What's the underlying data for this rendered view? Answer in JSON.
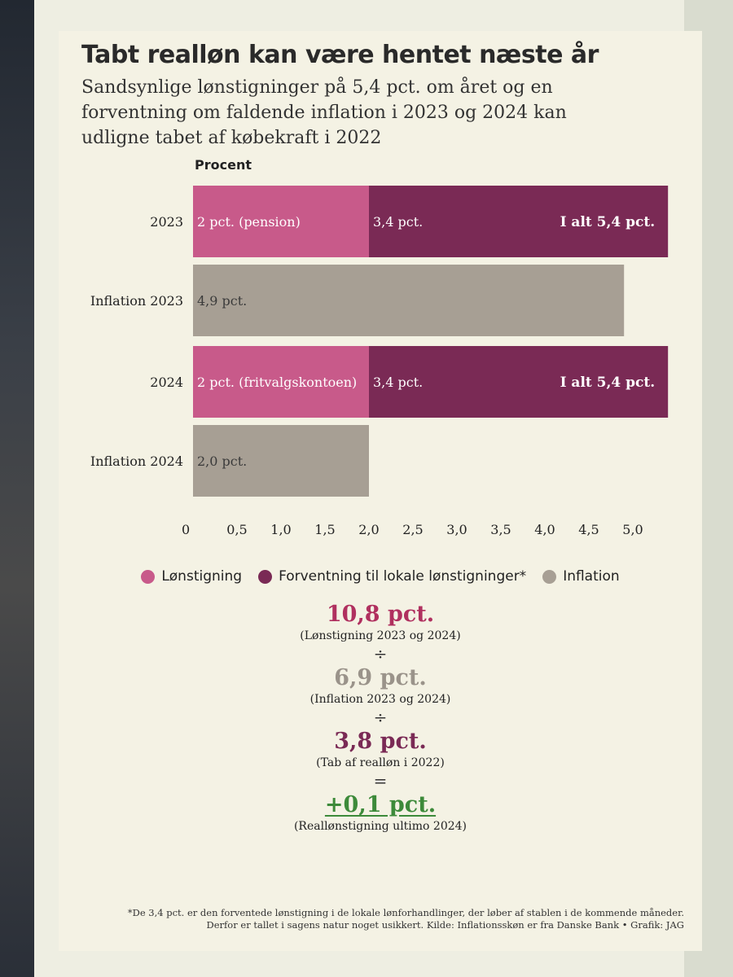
{
  "title": "Tabt realløn kan være hentet næste år",
  "subtitle": "Sandsynlige lønstigninger på 5,4 pct. om året og en forventning om faldende inflation i 2023 og 2024 kan udligne tabet af købekraft i 2022",
  "colors": {
    "lonstigning": "#c85a8a",
    "lokale": "#7a2a55",
    "inflation": "#a79f94",
    "calc_red": "#b0305f",
    "calc_gray": "#9a938a",
    "calc_dark": "#7a2a55",
    "calc_green": "#3d8a3a"
  },
  "chart_data": {
    "type": "bar",
    "orientation": "horizontal",
    "stacked": true,
    "title": "",
    "xlabel": "",
    "ylabel": "Procent",
    "xlim": [
      0,
      5.4
    ],
    "ticks": [
      "0",
      "0,5",
      "1,0",
      "1,5",
      "2,0",
      "2,5",
      "3,0",
      "3,5",
      "4,0",
      "4,5",
      "5,0"
    ],
    "categories": [
      "2023",
      "Inflation 2023",
      "2024",
      "Inflation 2024"
    ],
    "series": [
      {
        "name": "Lønstigning",
        "values": [
          2.0,
          0,
          2.0,
          0
        ],
        "labels": [
          "2 pct. (pension)",
          "",
          "2 pct. (fritvalgskontoen)",
          ""
        ]
      },
      {
        "name": "Forventning til lokale lønstigninger*",
        "values": [
          3.4,
          0,
          3.4,
          0
        ],
        "labels": [
          "3,4 pct.",
          "",
          "3,4 pct.",
          ""
        ]
      },
      {
        "name": "Inflation",
        "values": [
          0,
          4.9,
          0,
          2.0
        ],
        "labels": [
          "",
          "4,9 pct.",
          "",
          "2,0 pct."
        ]
      }
    ],
    "totals": [
      "I alt 5,4 pct.",
      "",
      "I alt 5,4 pct.",
      ""
    ],
    "legend_position": "bottom",
    "grid": false
  },
  "calculation": {
    "line1": {
      "value": "10,8 pct.",
      "caption": "(Lønstigning 2023 og 2024)"
    },
    "op1": "÷",
    "line2": {
      "value": "6,9 pct.",
      "caption": "(Inflation 2023 og 2024)"
    },
    "op2": "÷",
    "line3": {
      "value": "3,8 pct.",
      "caption": "(Tab af realløn i 2022)"
    },
    "op3": "=",
    "line4": {
      "value": "+0,1 pct.",
      "caption": "(Reallønstigning ultimo 2024)"
    }
  },
  "footnote": {
    "line1": "*De 3,4 pct. er den forventede lønstigning i de lokale lønforhandlinger, der løber af stablen i de kommende måneder.",
    "line2": "Derfor er tallet i sagens natur noget usikkert. Kilde: Inflationsskøn er fra Danske Bank • Grafik: JAG"
  }
}
